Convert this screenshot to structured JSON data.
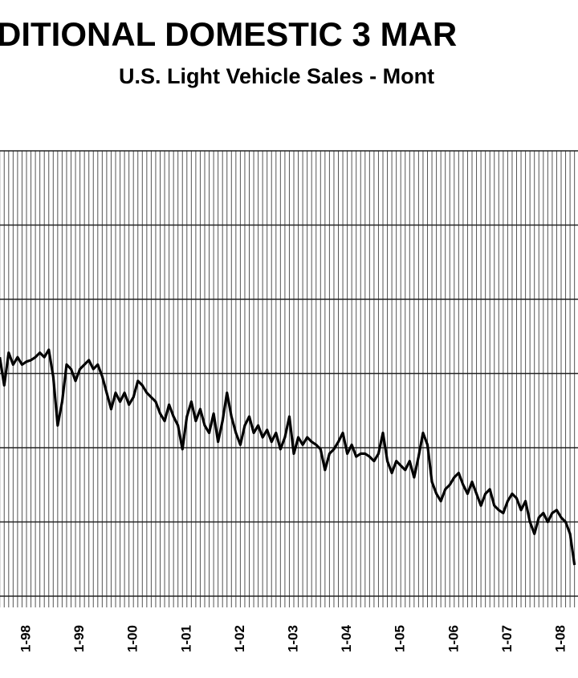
{
  "chart_data": {
    "type": "line",
    "title": "DITIONAL DOMESTIC 3 MAR",
    "subtitle": "U.S. Light Vehicle Sales - Mont",
    "categories": [
      null,
      null,
      null,
      null,
      null,
      null,
      "1-98",
      null,
      null,
      null,
      null,
      null,
      null,
      null,
      null,
      null,
      null,
      null,
      "1-99",
      null,
      null,
      null,
      null,
      null,
      null,
      null,
      null,
      null,
      null,
      null,
      "1-00",
      null,
      null,
      null,
      null,
      null,
      null,
      null,
      null,
      null,
      null,
      null,
      "1-01",
      null,
      null,
      null,
      null,
      null,
      null,
      null,
      null,
      null,
      null,
      null,
      "1-02",
      null,
      null,
      null,
      null,
      null,
      null,
      null,
      null,
      null,
      null,
      null,
      "1-03",
      null,
      null,
      null,
      null,
      null,
      null,
      null,
      null,
      null,
      null,
      null,
      "1-04",
      null,
      null,
      null,
      null,
      null,
      null,
      null,
      null,
      null,
      null,
      null,
      "1-05",
      null,
      null,
      null,
      null,
      null,
      null,
      null,
      null,
      null,
      null,
      null,
      "1-06",
      null,
      null,
      null,
      null,
      null,
      null,
      null,
      null,
      null,
      null,
      null,
      "1-07",
      null,
      null,
      null,
      null,
      null,
      null,
      null,
      null,
      null,
      null,
      null,
      "1-08",
      null,
      null,
      null
    ],
    "values": [
      61.1,
      59.2,
      61.4,
      60.6,
      61.1,
      60.6,
      60.8,
      60.9,
      61.1,
      61.4,
      61.1,
      61.6,
      59.8,
      56.5,
      58.1,
      60.6,
      60.3,
      59.5,
      60.3,
      60.6,
      60.9,
      60.3,
      60.6,
      59.8,
      58.7,
      57.6,
      58.7,
      58.1,
      58.7,
      57.9,
      58.4,
      59.5,
      59.2,
      58.7,
      58.4,
      58.1,
      57.3,
      56.8,
      57.9,
      57.1,
      56.5,
      54.9,
      57.1,
      58.1,
      56.8,
      57.6,
      56.5,
      56.0,
      57.3,
      55.4,
      56.8,
      58.7,
      57.1,
      56.0,
      55.2,
      56.5,
      57.1,
      56.0,
      56.5,
      55.7,
      56.2,
      55.4,
      56.0,
      54.9,
      55.7,
      57.1,
      54.6,
      55.7,
      55.2,
      55.7,
      55.4,
      55.2,
      54.9,
      53.5,
      54.6,
      54.9,
      55.4,
      56.0,
      54.6,
      55.2,
      54.4,
      54.6,
      54.6,
      54.4,
      54.1,
      54.6,
      56.0,
      54.1,
      53.3,
      54.1,
      53.8,
      53.5,
      54.1,
      53.0,
      54.4,
      56.0,
      55.2,
      52.7,
      51.9,
      51.4,
      52.2,
      52.5,
      53.0,
      53.3,
      52.5,
      51.9,
      52.7,
      51.9,
      51.1,
      51.9,
      52.2,
      51.1,
      50.8,
      50.6,
      51.4,
      51.9,
      51.6,
      50.8,
      51.4,
      50.0,
      49.2,
      50.3,
      50.6,
      50.0,
      50.6,
      50.8,
      50.3,
      50.0,
      49.2,
      47.1
    ],
    "color": "#000000",
    "ylim": [
      45,
      75
    ],
    "yticks": [
      45,
      50,
      55,
      60,
      65,
      70,
      75
    ],
    "grid": true
  }
}
